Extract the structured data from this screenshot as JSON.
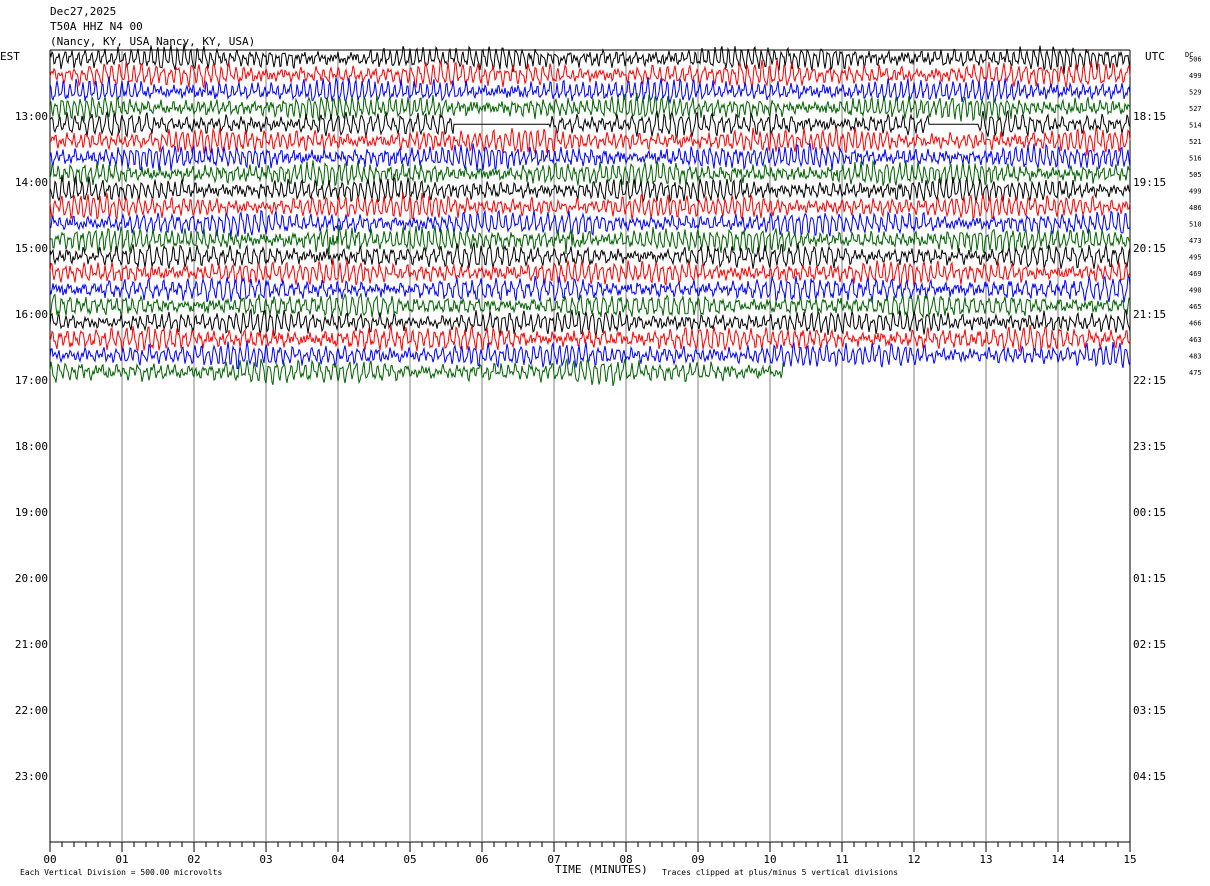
{
  "header": {
    "date": "Dec27,2025",
    "station": "T50A HHZ N4 00",
    "location": "(Nancy, KY, USA Nancy, KY, USA)"
  },
  "left_axis_label": "EST",
  "right_axis_label": "UTC",
  "dc_label": "DC",
  "footer": {
    "scale_note": "Each Vertical Division =  500.00 microvolts",
    "x_axis_title": "TIME (MINUTES)",
    "clip_note": "Traces clipped at plus/minus 5 vertical divisions"
  },
  "colors": {
    "trace_cycle": [
      "#000000",
      "#ff0000",
      "#0000ff",
      "#006400"
    ],
    "grid": "#808080",
    "text": "#000000"
  },
  "chart_data": {
    "type": "helicorder",
    "title": "T50A HHZ N4 00",
    "xlabel": "TIME (MINUTES)",
    "x_range": [
      0,
      15
    ],
    "x_ticks": [
      "00",
      "01",
      "02",
      "03",
      "04",
      "05",
      "06",
      "07",
      "08",
      "09",
      "10",
      "11",
      "12",
      "13",
      "14",
      "15"
    ],
    "rows_per_hour": 4,
    "first_row_local": "12:00",
    "total_rows": 48,
    "hour_labels_local": [
      "13:00",
      "14:00",
      "15:00",
      "16:00",
      "17:00",
      "18:00",
      "19:00",
      "20:00",
      "21:00",
      "22:00",
      "23:00"
    ],
    "hour_labels_utc": [
      "18:15",
      "19:15",
      "20:15",
      "21:15",
      "22:15",
      "23:15",
      "00:15",
      "01:15",
      "02:15",
      "03:15",
      "04:15"
    ],
    "dc_offsets": [
      506,
      499,
      529,
      527,
      514,
      521,
      516,
      505,
      499,
      486,
      510,
      473,
      495,
      469,
      490,
      465,
      466,
      463,
      483,
      475
    ],
    "traces_recorded": 20,
    "last_trace_end_minute": 10.2,
    "events": [
      {
        "row": 11,
        "minute": 4.0,
        "label": ""
      },
      {
        "row": 11,
        "minute": 7.3,
        "label": ""
      }
    ],
    "flat_segments": [
      {
        "row": 4,
        "start_minute": 5.6,
        "end_minute": 6.9
      },
      {
        "row": 4,
        "start_minute": 12.2,
        "end_minute": 12.9
      }
    ],
    "clip_divisions": 5,
    "microvolts_per_division": 500.0
  }
}
